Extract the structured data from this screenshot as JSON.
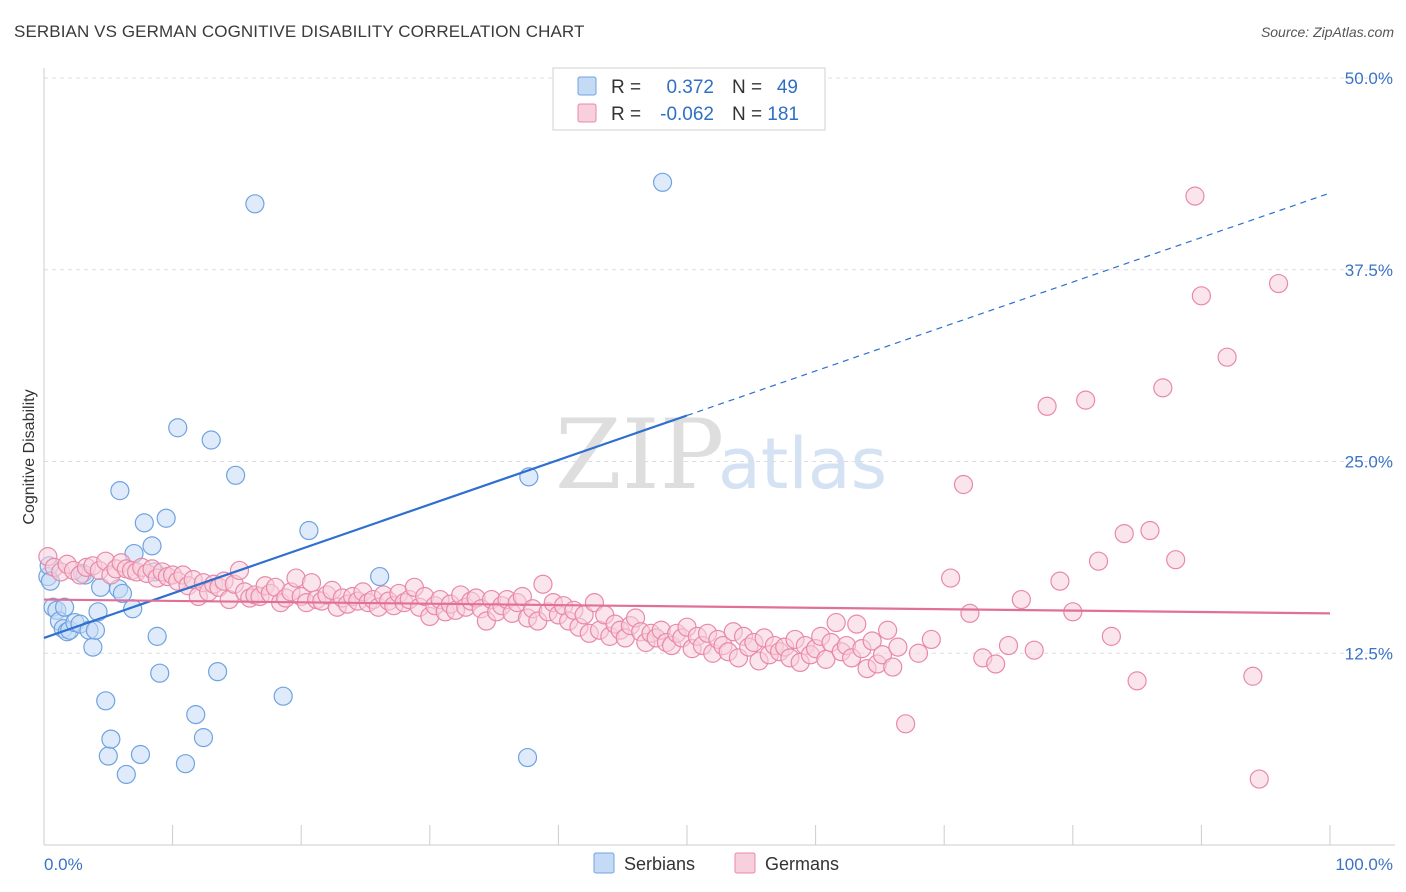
{
  "title": "SERBIAN VS GERMAN COGNITIVE DISABILITY CORRELATION CHART",
  "source": "Source: ZipAtlas.com",
  "watermark": {
    "zip": "ZIP",
    "atlas": "atlas"
  },
  "legend_box": {
    "rows": [
      {
        "r_label": "R =",
        "r_value": "0.372",
        "n_label": "N =",
        "n_value": "49",
        "color": "#a8c8f0"
      },
      {
        "r_label": "R =",
        "r_value": "-0.062",
        "n_label": "N =",
        "n_value": "181",
        "color": "#f5b8cc"
      }
    ]
  },
  "bottom_legend": [
    {
      "label": "Serbians",
      "color": "#a8c8f0"
    },
    {
      "label": "Germans",
      "color": "#f5b8cc"
    }
  ],
  "chart_data": {
    "type": "scatter",
    "title": "SERBIAN VS GERMAN COGNITIVE DISABILITY CORRELATION CHART",
    "xlabel": "",
    "ylabel": "Cognitive Disability",
    "xlim": [
      0,
      100
    ],
    "ylim": [
      0,
      50
    ],
    "x_tick_labels": [
      "0.0%",
      "100.0%"
    ],
    "y_ticks": [
      12.5,
      25.0,
      37.5,
      50.0
    ],
    "y_tick_labels": [
      "12.5%",
      "25.0%",
      "37.5%",
      "50.0%"
    ],
    "grid": true,
    "legend_position": "top-center",
    "series": [
      {
        "name": "Serbians",
        "color": "#6fa3e0",
        "fill": "#c5dbf5",
        "trend": {
          "x0": 0,
          "y0": 13.5,
          "x1": 50,
          "y1": 28.0,
          "dashed_to": 100,
          "dashed_y": 42.5,
          "color": "#2e6fcf"
        },
        "points": [
          [
            0.3,
            17.5
          ],
          [
            0.4,
            18.2
          ],
          [
            0.5,
            17.2
          ],
          [
            0.7,
            15.5
          ],
          [
            1.0,
            15.3
          ],
          [
            1.2,
            14.6
          ],
          [
            1.5,
            14.1
          ],
          [
            1.6,
            15.5
          ],
          [
            1.8,
            13.9
          ],
          [
            2.0,
            14.0
          ],
          [
            2.4,
            14.5
          ],
          [
            2.8,
            14.4
          ],
          [
            3.0,
            17.7
          ],
          [
            3.2,
            17.6
          ],
          [
            3.5,
            14.0
          ],
          [
            3.8,
            12.9
          ],
          [
            4.0,
            14.0
          ],
          [
            4.2,
            15.2
          ],
          [
            4.4,
            16.8
          ],
          [
            4.8,
            9.4
          ],
          [
            5.0,
            5.8
          ],
          [
            5.2,
            6.9
          ],
          [
            5.8,
            16.7
          ],
          [
            5.9,
            23.1
          ],
          [
            6.1,
            16.4
          ],
          [
            6.4,
            4.6
          ],
          [
            6.9,
            15.4
          ],
          [
            7.0,
            19.0
          ],
          [
            7.5,
            5.9
          ],
          [
            7.8,
            21.0
          ],
          [
            8.4,
            19.5
          ],
          [
            8.6,
            17.8
          ],
          [
            8.8,
            13.6
          ],
          [
            9.0,
            11.2
          ],
          [
            9.5,
            21.3
          ],
          [
            10.4,
            27.2
          ],
          [
            11.0,
            5.3
          ],
          [
            11.8,
            8.5
          ],
          [
            12.4,
            7.0
          ],
          [
            13.0,
            26.4
          ],
          [
            13.5,
            11.3
          ],
          [
            14.9,
            24.1
          ],
          [
            16.4,
            41.8
          ],
          [
            18.6,
            9.7
          ],
          [
            20.6,
            20.5
          ],
          [
            26.1,
            17.5
          ],
          [
            37.6,
            5.7
          ],
          [
            37.7,
            24.0
          ],
          [
            48.1,
            43.2
          ]
        ]
      },
      {
        "name": "Germans",
        "color": "#e989a8",
        "fill": "#f8cfdc",
        "trend": {
          "x0": 0,
          "y0": 16.0,
          "x1": 100,
          "y1": 15.1,
          "color": "#e0709a"
        },
        "points": [
          [
            0.3,
            18.8
          ],
          [
            0.8,
            18.1
          ],
          [
            1.3,
            17.8
          ],
          [
            1.8,
            18.3
          ],
          [
            2.3,
            17.9
          ],
          [
            2.8,
            17.6
          ],
          [
            3.3,
            18.1
          ],
          [
            3.8,
            18.2
          ],
          [
            4.3,
            17.9
          ],
          [
            4.8,
            18.5
          ],
          [
            5.2,
            17.6
          ],
          [
            5.6,
            18.0
          ],
          [
            6.0,
            18.4
          ],
          [
            6.4,
            18.0
          ],
          [
            6.8,
            17.9
          ],
          [
            7.2,
            17.8
          ],
          [
            7.6,
            18.1
          ],
          [
            8.0,
            17.7
          ],
          [
            8.4,
            18.0
          ],
          [
            8.8,
            17.4
          ],
          [
            9.2,
            17.8
          ],
          [
            9.6,
            17.5
          ],
          [
            10.0,
            17.6
          ],
          [
            10.4,
            17.2
          ],
          [
            10.8,
            17.6
          ],
          [
            11.2,
            16.9
          ],
          [
            11.6,
            17.3
          ],
          [
            12.0,
            16.2
          ],
          [
            12.4,
            17.1
          ],
          [
            12.8,
            16.5
          ],
          [
            13.2,
            17.0
          ],
          [
            13.6,
            16.8
          ],
          [
            14.0,
            17.2
          ],
          [
            14.4,
            16.0
          ],
          [
            14.8,
            17.0
          ],
          [
            15.2,
            17.9
          ],
          [
            15.6,
            16.5
          ],
          [
            16.0,
            16.1
          ],
          [
            16.4,
            16.3
          ],
          [
            16.8,
            16.2
          ],
          [
            17.2,
            16.9
          ],
          [
            17.6,
            16.4
          ],
          [
            18.0,
            16.8
          ],
          [
            18.4,
            15.8
          ],
          [
            18.8,
            16.1
          ],
          [
            19.2,
            16.5
          ],
          [
            19.6,
            17.4
          ],
          [
            20.0,
            16.2
          ],
          [
            20.4,
            15.8
          ],
          [
            20.8,
            17.1
          ],
          [
            21.2,
            16.0
          ],
          [
            21.6,
            15.9
          ],
          [
            22.0,
            16.3
          ],
          [
            22.4,
            16.6
          ],
          [
            22.8,
            15.5
          ],
          [
            23.2,
            16.1
          ],
          [
            23.6,
            15.7
          ],
          [
            24.0,
            16.2
          ],
          [
            24.4,
            15.9
          ],
          [
            24.8,
            16.5
          ],
          [
            25.2,
            15.8
          ],
          [
            25.6,
            16.0
          ],
          [
            26.0,
            15.5
          ],
          [
            26.4,
            16.3
          ],
          [
            26.8,
            15.9
          ],
          [
            27.2,
            15.6
          ],
          [
            27.6,
            16.4
          ],
          [
            28.0,
            15.8
          ],
          [
            28.4,
            16.0
          ],
          [
            28.8,
            16.8
          ],
          [
            29.2,
            15.5
          ],
          [
            29.6,
            16.2
          ],
          [
            30.0,
            14.9
          ],
          [
            30.4,
            15.6
          ],
          [
            30.8,
            16.0
          ],
          [
            31.2,
            15.2
          ],
          [
            31.6,
            15.7
          ],
          [
            32.0,
            15.3
          ],
          [
            32.4,
            16.3
          ],
          [
            32.8,
            15.5
          ],
          [
            33.2,
            15.9
          ],
          [
            33.6,
            16.1
          ],
          [
            34.0,
            15.4
          ],
          [
            34.4,
            14.6
          ],
          [
            34.8,
            16.0
          ],
          [
            35.2,
            15.2
          ],
          [
            35.6,
            15.6
          ],
          [
            36.0,
            16.0
          ],
          [
            36.4,
            15.1
          ],
          [
            36.8,
            15.8
          ],
          [
            37.2,
            16.2
          ],
          [
            37.6,
            14.8
          ],
          [
            38.0,
            15.4
          ],
          [
            38.4,
            14.6
          ],
          [
            38.8,
            17.0
          ],
          [
            39.2,
            15.2
          ],
          [
            39.6,
            15.8
          ],
          [
            40.0,
            15.0
          ],
          [
            40.4,
            15.6
          ],
          [
            40.8,
            14.6
          ],
          [
            41.2,
            15.3
          ],
          [
            41.6,
            14.2
          ],
          [
            42.0,
            15.0
          ],
          [
            42.4,
            13.8
          ],
          [
            42.8,
            15.8
          ],
          [
            43.2,
            14.0
          ],
          [
            43.6,
            15.0
          ],
          [
            44.0,
            13.6
          ],
          [
            44.4,
            14.4
          ],
          [
            44.8,
            14.0
          ],
          [
            45.2,
            13.5
          ],
          [
            45.6,
            14.3
          ],
          [
            46.0,
            14.8
          ],
          [
            46.4,
            13.9
          ],
          [
            46.8,
            13.2
          ],
          [
            47.2,
            13.8
          ],
          [
            47.6,
            13.5
          ],
          [
            48.0,
            14.0
          ],
          [
            48.4,
            13.2
          ],
          [
            48.8,
            13.0
          ],
          [
            49.2,
            13.8
          ],
          [
            49.6,
            13.5
          ],
          [
            50.0,
            14.2
          ],
          [
            50.4,
            12.8
          ],
          [
            50.8,
            13.6
          ],
          [
            51.2,
            13.0
          ],
          [
            51.6,
            13.8
          ],
          [
            52.0,
            12.5
          ],
          [
            52.4,
            13.4
          ],
          [
            52.8,
            13.0
          ],
          [
            53.2,
            12.6
          ],
          [
            53.6,
            13.9
          ],
          [
            54.0,
            12.2
          ],
          [
            54.4,
            13.6
          ],
          [
            54.8,
            12.9
          ],
          [
            55.2,
            13.2
          ],
          [
            55.6,
            12.0
          ],
          [
            56.0,
            13.5
          ],
          [
            56.4,
            12.4
          ],
          [
            56.8,
            13.0
          ],
          [
            57.2,
            12.6
          ],
          [
            57.6,
            12.9
          ],
          [
            58.0,
            12.2
          ],
          [
            58.4,
            13.4
          ],
          [
            58.8,
            11.9
          ],
          [
            59.2,
            13.0
          ],
          [
            59.6,
            12.4
          ],
          [
            60.0,
            12.8
          ],
          [
            60.4,
            13.6
          ],
          [
            60.8,
            12.1
          ],
          [
            61.2,
            13.2
          ],
          [
            61.6,
            14.5
          ],
          [
            62.0,
            12.6
          ],
          [
            62.4,
            13.0
          ],
          [
            62.8,
            12.2
          ],
          [
            63.2,
            14.4
          ],
          [
            63.6,
            12.8
          ],
          [
            64.0,
            11.5
          ],
          [
            64.4,
            13.3
          ],
          [
            64.8,
            11.8
          ],
          [
            65.2,
            12.4
          ],
          [
            65.6,
            14.0
          ],
          [
            66.0,
            11.6
          ],
          [
            66.4,
            12.9
          ],
          [
            67.0,
            7.9
          ],
          [
            68.0,
            12.5
          ],
          [
            69.0,
            13.4
          ],
          [
            70.5,
            17.4
          ],
          [
            72.0,
            15.1
          ],
          [
            73.0,
            12.2
          ],
          [
            74.0,
            11.8
          ],
          [
            75.0,
            13.0
          ],
          [
            76.0,
            16.0
          ],
          [
            77.0,
            12.7
          ],
          [
            78.0,
            28.6
          ],
          [
            79.0,
            17.2
          ],
          [
            80.0,
            15.2
          ],
          [
            81.0,
            29.0
          ],
          [
            82.0,
            18.5
          ],
          [
            83.0,
            13.6
          ],
          [
            84.0,
            20.3
          ],
          [
            85.0,
            10.7
          ],
          [
            86.0,
            20.5
          ],
          [
            87.0,
            29.8
          ],
          [
            88.0,
            18.6
          ],
          [
            90.0,
            35.8
          ],
          [
            92.0,
            31.8
          ],
          [
            94.0,
            11.0
          ],
          [
            96.0,
            36.6
          ],
          [
            89.5,
            42.3
          ],
          [
            94.5,
            4.3
          ],
          [
            71.5,
            23.5
          ]
        ]
      }
    ]
  }
}
